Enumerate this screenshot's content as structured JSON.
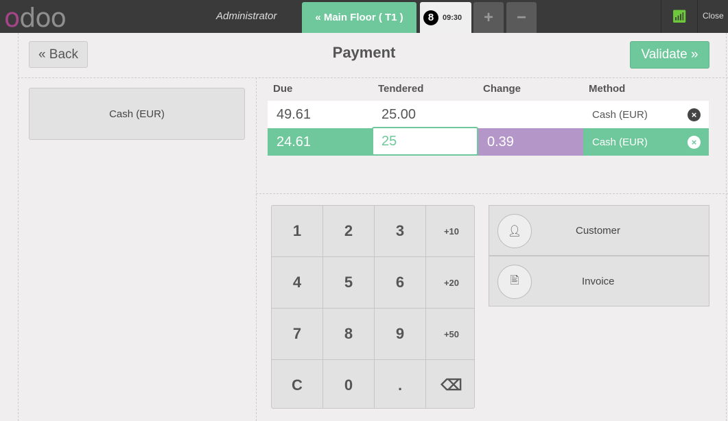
{
  "header": {
    "logo": "odoo",
    "user": "Administrator",
    "floor_button": "« Main Floor ( T1 )",
    "order": {
      "number": "8",
      "time": "09:30"
    },
    "add_label": "+",
    "remove_label": "−",
    "close_label": "Close",
    "wifi_color": "#6ec83b"
  },
  "screen": {
    "title": "Payment",
    "back_label": "« Back",
    "validate_label": "Validate »"
  },
  "payment_methods": [
    {
      "label": "Cash (EUR)"
    }
  ],
  "table": {
    "headers": [
      "Due",
      "Tendered",
      "Change",
      "Method"
    ],
    "rows": [
      {
        "due": "49.61",
        "tendered": "25.00",
        "change": "",
        "method": "Cash (EUR)",
        "selected": false
      },
      {
        "due": "24.61",
        "tendered": "25",
        "change": "0.39",
        "method": "Cash (EUR)",
        "selected": true
      }
    ]
  },
  "numpad": [
    "1",
    "2",
    "3",
    "+10",
    "4",
    "5",
    "6",
    "+20",
    "7",
    "8",
    "9",
    "+50",
    "C",
    "0",
    ".",
    "⌫"
  ],
  "actions": {
    "customer": "Customer",
    "invoice": "Invoice"
  },
  "colors": {
    "accent": "#6ec89b",
    "change": "#b596c9",
    "header": "#3a3a3a"
  }
}
